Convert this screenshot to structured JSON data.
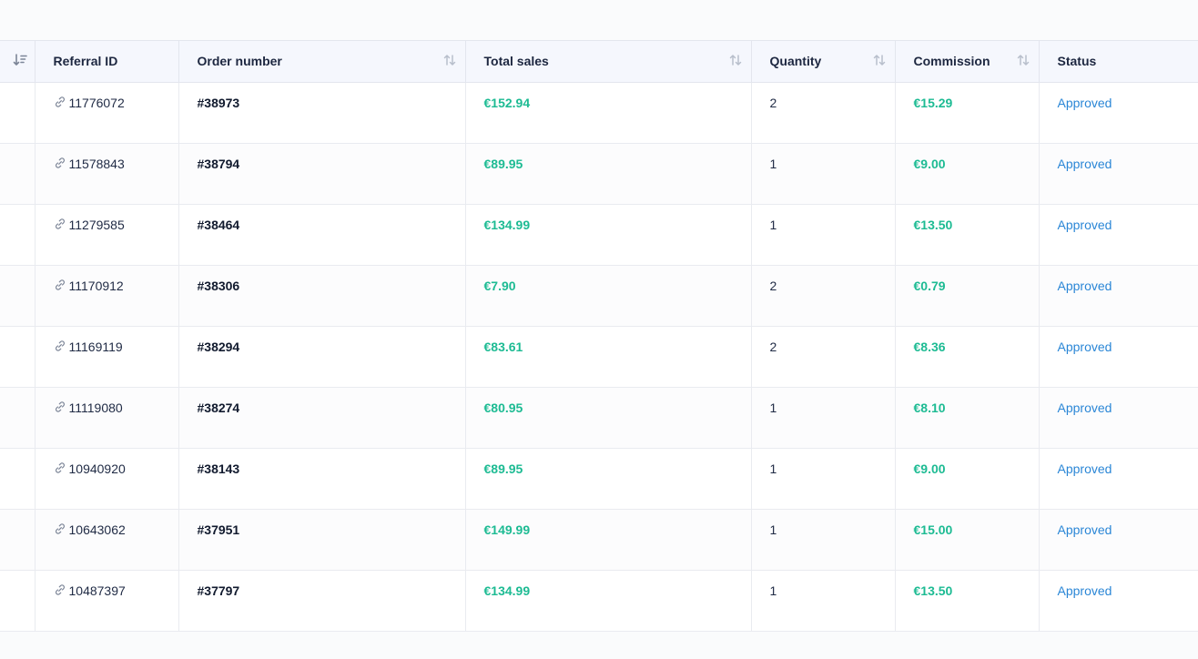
{
  "columns": {
    "referral_id": "Referral ID",
    "order_number": "Order number",
    "total_sales": "Total sales",
    "quantity": "Quantity",
    "commission": "Commission",
    "status": "Status"
  },
  "icons": {
    "sort_active": "sort-descending-icon",
    "sort": "sort-arrows-icon",
    "referral_link": "link-icon"
  },
  "colors": {
    "money": "#1dbb93",
    "status_link": "#2a86d6"
  },
  "rows": [
    {
      "referral_id": "11776072",
      "order_number": "#38973",
      "total_sales": "€152.94",
      "quantity": "2",
      "commission": "€15.29",
      "status": "Approved"
    },
    {
      "referral_id": "11578843",
      "order_number": "#38794",
      "total_sales": "€89.95",
      "quantity": "1",
      "commission": "€9.00",
      "status": "Approved"
    },
    {
      "referral_id": "11279585",
      "order_number": "#38464",
      "total_sales": "€134.99",
      "quantity": "1",
      "commission": "€13.50",
      "status": "Approved"
    },
    {
      "referral_id": "11170912",
      "order_number": "#38306",
      "total_sales": "€7.90",
      "quantity": "2",
      "commission": "€0.79",
      "status": "Approved"
    },
    {
      "referral_id": "11169119",
      "order_number": "#38294",
      "total_sales": "€83.61",
      "quantity": "2",
      "commission": "€8.36",
      "status": "Approved"
    },
    {
      "referral_id": "11119080",
      "order_number": "#38274",
      "total_sales": "€80.95",
      "quantity": "1",
      "commission": "€8.10",
      "status": "Approved"
    },
    {
      "referral_id": "10940920",
      "order_number": "#38143",
      "total_sales": "€89.95",
      "quantity": "1",
      "commission": "€9.00",
      "status": "Approved"
    },
    {
      "referral_id": "10643062",
      "order_number": "#37951",
      "total_sales": "€149.99",
      "quantity": "1",
      "commission": "€15.00",
      "status": "Approved"
    },
    {
      "referral_id": "10487397",
      "order_number": "#37797",
      "total_sales": "€134.99",
      "quantity": "1",
      "commission": "€13.50",
      "status": "Approved"
    }
  ]
}
